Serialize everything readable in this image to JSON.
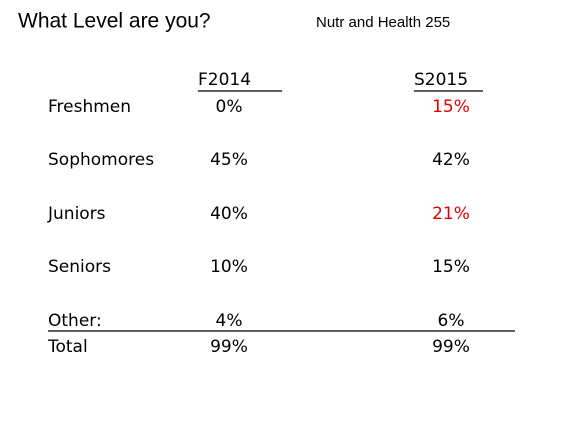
{
  "header": {
    "title": "What Level are you?",
    "course": "Nutr and Health 255"
  },
  "table": {
    "columns": [
      "F2014",
      "S2015"
    ],
    "rows": [
      [
        "Freshmen",
        "0%",
        {
          "text": "15%",
          "color": "#e00000"
        }
      ],
      [
        "Sophomores",
        "45%",
        "42%"
      ],
      [
        "Juniors",
        "40%",
        {
          "text": "21%",
          "color": "#e00000"
        }
      ],
      [
        "Seniors",
        "10%",
        "15%"
      ],
      [
        "Other:",
        "4%",
        "6%"
      ],
      [
        "Total",
        "99%",
        "99%"
      ]
    ]
  }
}
